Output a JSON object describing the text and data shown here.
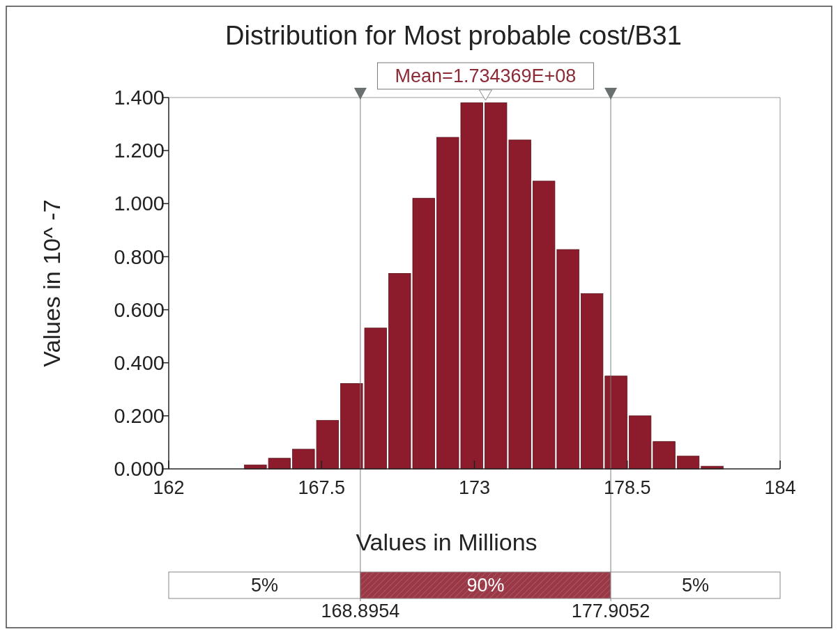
{
  "chart_data": {
    "type": "histogram",
    "title": "Distribution for Most probable cost/B31",
    "xlabel": "Values in Millions",
    "ylabel": "Values in 10^ -7",
    "bins": [
      164.7,
      165.565,
      166.43,
      167.295,
      168.16,
      169.025,
      169.89,
      170.755,
      171.62,
      172.485,
      173.35,
      174.215,
      175.08,
      175.945,
      176.81,
      177.675,
      178.54,
      179.405,
      180.27,
      181.135,
      182.0
    ],
    "values": [
      0.015,
      0.04,
      0.074,
      0.183,
      0.322,
      0.531,
      0.737,
      1.02,
      1.25,
      1.38,
      1.38,
      1.24,
      1.085,
      0.827,
      0.661,
      0.35,
      0.2,
      0.103,
      0.048,
      0.01
    ],
    "color": "#8c1c2c",
    "xlim": [
      162,
      184
    ],
    "xticks": [
      162,
      167.5,
      173,
      178.5,
      184
    ],
    "ylim": [
      0,
      1.4
    ],
    "yticks": [
      {
        "value": 0,
        "label": "0.000"
      },
      {
        "value": 0.2,
        "label": "0.200"
      },
      {
        "value": 0.4,
        "label": "0.400"
      },
      {
        "value": 0.6,
        "label": "0.600"
      },
      {
        "value": 0.8,
        "label": "0.800"
      },
      {
        "value": 1.0,
        "label": "1.000"
      },
      {
        "value": 1.2,
        "label": "1.200"
      },
      {
        "value": 1.4,
        "label": "1.400"
      }
    ],
    "ref_lines": [
      {
        "axis": "x",
        "value": 168.8954,
        "label": "168.8954",
        "color": "#808080"
      },
      {
        "axis": "x",
        "value": 177.9052,
        "label": "177.9052",
        "color": "#808080"
      }
    ],
    "annotations": [
      "Mean=1.734369E+08",
      "5%",
      "90%",
      "5%"
    ],
    "grid": false
  }
}
